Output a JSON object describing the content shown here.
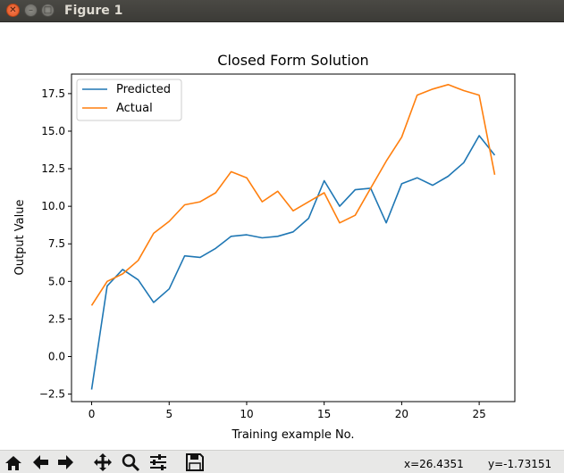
{
  "window": {
    "title": "Figure 1"
  },
  "chart_data": {
    "type": "line",
    "title": "Closed Form Solution",
    "xlabel": "Training example No.",
    "ylabel": "Output Value",
    "xlim": [
      -1.3,
      27.3
    ],
    "ylim": [
      -3.0,
      18.8
    ],
    "xticks": [
      0,
      5,
      10,
      15,
      20,
      25
    ],
    "yticks": [
      -2.5,
      0.0,
      2.5,
      5.0,
      7.5,
      10.0,
      12.5,
      15.0,
      17.5
    ],
    "xtick_labels": [
      "0",
      "5",
      "10",
      "15",
      "20",
      "25"
    ],
    "ytick_labels": [
      "−2.5",
      "0.0",
      "2.5",
      "5.0",
      "7.5",
      "10.0",
      "12.5",
      "15.0",
      "17.5"
    ],
    "legend_position": "top-left",
    "grid": false,
    "x": [
      0,
      1,
      2,
      3,
      4,
      5,
      6,
      7,
      8,
      9,
      10,
      11,
      12,
      13,
      14,
      15,
      16,
      17,
      18,
      19,
      20,
      21,
      22,
      23,
      24,
      25,
      26
    ],
    "series": [
      {
        "name": "Predicted",
        "color": "#1f77b4",
        "values": [
          -2.2,
          4.7,
          5.8,
          5.1,
          3.6,
          4.5,
          6.7,
          6.6,
          7.2,
          8.0,
          8.1,
          7.9,
          8.0,
          8.3,
          9.2,
          11.7,
          10.0,
          11.1,
          11.2,
          8.9,
          11.5,
          11.9,
          11.4,
          12.0,
          12.9,
          14.7,
          13.4
        ]
      },
      {
        "name": "Actual",
        "color": "#ff7f0e",
        "values": [
          3.4,
          5.0,
          5.5,
          6.4,
          8.2,
          9.0,
          10.1,
          10.3,
          10.9,
          12.3,
          11.9,
          10.3,
          11.0,
          9.7,
          10.3,
          10.9,
          8.9,
          9.4,
          11.2,
          13.0,
          14.6,
          17.4,
          17.8,
          18.1,
          17.7,
          17.4,
          12.1
        ]
      }
    ]
  },
  "toolbar": {
    "buttons": [
      "home-icon",
      "back-arrow-icon",
      "forward-arrow-icon",
      "pan-icon",
      "zoom-icon",
      "configure-subplots-icon",
      "save-icon"
    ],
    "x_readout": "x=26.4351",
    "y_readout": "y=-1.73151"
  }
}
